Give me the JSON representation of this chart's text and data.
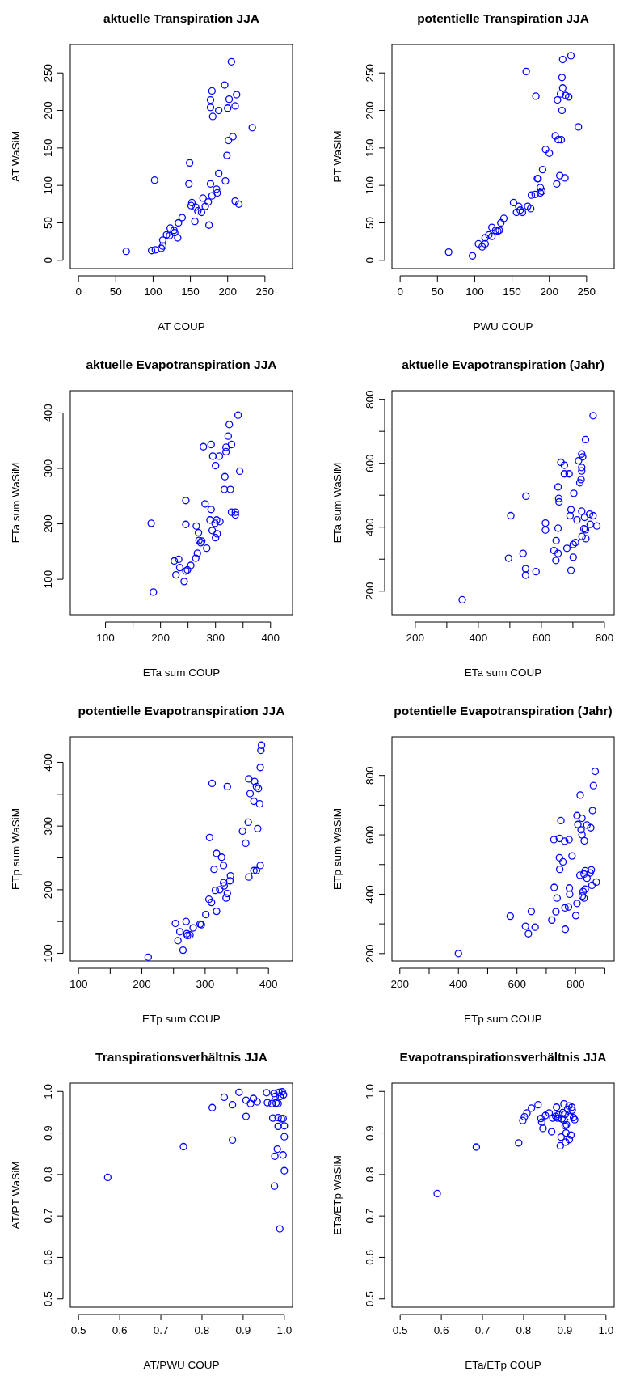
{
  "chart_data": [
    {
      "type": "scatter",
      "title": "aktuelle Transpiration JJA",
      "xlabel": "AT COUP",
      "ylabel": "AT WaSiM",
      "marker": "circle",
      "xlim": [
        -11,
        287
      ],
      "ylim": [
        -11,
        288
      ],
      "xticks": [
        0,
        50,
        100,
        150,
        200,
        250
      ],
      "yticks": [
        0,
        50,
        100,
        150,
        200,
        250
      ],
      "x": [
        64,
        98,
        103,
        111,
        113,
        113,
        118,
        122,
        123,
        128,
        129,
        133,
        134,
        139,
        102,
        149,
        148,
        151,
        152,
        156,
        157,
        160,
        165,
        167,
        170,
        174,
        175,
        179,
        177,
        185,
        186,
        188,
        197,
        199,
        201,
        207,
        210,
        215,
        177,
        177,
        179,
        180,
        188,
        196,
        200,
        202,
        205,
        210,
        212,
        233
      ],
      "series": [
        {
          "color": "#0000ff",
          "values": [
            12,
            13,
            14,
            16,
            19,
            27,
            34,
            33,
            43,
            40,
            37,
            30,
            50,
            57,
            107,
            130,
            102,
            73,
            77,
            52,
            71,
            66,
            64,
            83,
            72,
            78,
            47,
            86,
            102,
            95,
            90,
            116,
            106,
            140,
            160,
            165,
            79,
            75,
            214,
            204,
            226,
            192,
            200,
            234,
            203,
            215,
            265,
            206,
            221,
            177
          ]
        }
      ]
    },
    {
      "type": "scatter",
      "title": "potentielle Transpiration JJA",
      "xlabel": "PWU COUP",
      "ylabel": "PT WaSiM",
      "marker": "circle",
      "xlim": [
        -11,
        287
      ],
      "ylim": [
        -11,
        288
      ],
      "xticks": [
        0,
        50,
        100,
        150,
        200,
        250
      ],
      "yticks": [
        0,
        50,
        100,
        150,
        200,
        250
      ],
      "x": [
        65,
        97,
        105,
        110,
        114,
        114,
        119,
        123,
        123,
        128,
        131,
        133,
        135,
        139,
        152,
        156,
        159,
        161,
        164,
        171,
        175,
        176,
        181,
        184,
        185,
        188,
        188,
        190,
        191,
        195,
        200,
        208,
        212,
        216,
        210,
        214,
        221,
        169,
        182,
        211,
        215,
        218,
        217,
        218,
        217,
        222,
        226,
        229,
        239
      ],
      "series": [
        {
          "color": "#0000ff",
          "values": [
            11,
            6,
            22,
            18,
            22,
            30,
            34,
            44,
            32,
            40,
            39,
            40,
            50,
            56,
            77,
            64,
            72,
            67,
            64,
            72,
            69,
            87,
            88,
            109,
            109,
            97,
            90,
            92,
            121,
            148,
            143,
            166,
            161,
            161,
            102,
            113,
            110,
            252,
            219,
            214,
            222,
            268,
            244,
            230,
            200,
            220,
            218,
            273,
            178
          ]
        }
      ]
    },
    {
      "type": "scatter",
      "title": "aktuelle Evapotranspiration JJA",
      "xlabel": "ETa sum COUP",
      "ylabel": "ETa sum WaSiM",
      "marker": "circle",
      "xlim": [
        36,
        440
      ],
      "ylim": [
        36,
        440
      ],
      "xticks": [
        100,
        {
          "value": 150,
          "label": null
        },
        200,
        {
          "value": 250,
          "label": null
        },
        300,
        {
          "value": 350,
          "label": null
        },
        400
      ],
      "yticks": [
        100,
        200,
        300,
        400
      ],
      "x": [
        183,
        187,
        225,
        233,
        235,
        228,
        243,
        246,
        249,
        255,
        246,
        246,
        264,
        265,
        267,
        269,
        270,
        273,
        275,
        284,
        278,
        281,
        290,
        292,
        292,
        294,
        295,
        300,
        299,
        300,
        302,
        303,
        307,
        308,
        316,
        317,
        319,
        319,
        323,
        325,
        327,
        329,
        329,
        336,
        336,
        341,
        344
      ],
      "series": [
        {
          "color": "#0000ff",
          "values": [
            201,
            77,
            133,
            136,
            121,
            108,
            96,
            115,
            117,
            125,
            242,
            199,
            138,
            196,
            147,
            184,
            170,
            166,
            169,
            156,
            339,
            236,
            207,
            226,
            343,
            188,
            322,
            305,
            201,
            175,
            207,
            182,
            322,
            204,
            262,
            285,
            338,
            330,
            358,
            379,
            262,
            343,
            221,
            221,
            216,
            396,
            295
          ]
        }
      ]
    },
    {
      "type": "scatter",
      "title": "aktuelle Evapotranspiration (Jahr)",
      "xlabel": "ETa sum COUP",
      "ylabel": "ETa sum WaSiM",
      "marker": "circle",
      "xlim": [
        126,
        831
      ],
      "ylim": [
        126,
        827
      ],
      "xticks": [
        200,
        {
          "value": 300,
          "label": null
        },
        400,
        {
          "value": 500,
          "label": null
        },
        600,
        {
          "value": 700,
          "label": null
        },
        800
      ],
      "yticks": [
        200,
        {
          "value": 300,
          "label": null
        },
        400,
        {
          "value": 500,
          "label": null
        },
        600,
        {
          "value": 700,
          "label": null
        },
        800
      ],
      "x": [
        349,
        496,
        503,
        542,
        550,
        550,
        551,
        583,
        613,
        613,
        646,
        647,
        653,
        653,
        653,
        655,
        656,
        662,
        673,
        673,
        640,
        681,
        688,
        694,
        694,
        691,
        703,
        701,
        708,
        701,
        713,
        718,
        722,
        726,
        728,
        731,
        728,
        728,
        728,
        729,
        735,
        740,
        737,
        741,
        740,
        753,
        755,
        764,
        764,
        776
      ],
      "series": [
        {
          "color": "#0000ff",
          "values": [
            173,
            303,
            436,
            318,
            270,
            250,
            497,
            261,
            413,
            391,
            296,
            358,
            397,
            318,
            526,
            490,
            479,
            603,
            594,
            567,
            327,
            334,
            567,
            265,
            455,
            436,
            506,
            346,
            352,
            306,
            423,
            608,
            539,
            549,
            629,
            620,
            587,
            576,
            450,
            371,
            395,
            392,
            431,
            364,
            674,
            441,
            409,
            436,
            749,
            404
          ]
        }
      ]
    },
    {
      "type": "scatter",
      "title": "potentielle Evapotranspiration JJA",
      "xlabel": "ETp sum COUP",
      "ylabel": "ETp sum WaSiM",
      "marker": "circle",
      "xlim": [
        87,
        438
      ],
      "ylim": [
        88,
        440
      ],
      "xticks": [
        100,
        {
          "value": 150,
          "label": null
        },
        200,
        {
          "value": 250,
          "label": null
        },
        300,
        {
          "value": 350,
          "label": null
        },
        400
      ],
      "yticks": [
        100,
        {
          "value": 150,
          "label": null
        },
        200,
        {
          "value": 250,
          "label": null
        },
        300,
        {
          "value": 350,
          "label": null
        },
        400
      ],
      "x": [
        210,
        253,
        257,
        260,
        265,
        270,
        271,
        272,
        276,
        281,
        292,
        294,
        301,
        306,
        310,
        307,
        311,
        314,
        316,
        318,
        318,
        323,
        326,
        329,
        329,
        330,
        333,
        335,
        335,
        339,
        340,
        359,
        364,
        368,
        369,
        369,
        371,
        377,
        377,
        378,
        381,
        383,
        384,
        386,
        387,
        387,
        388,
        389,
        381
      ],
      "series": [
        {
          "color": "#0000ff",
          "values": [
            94,
            147,
            120,
            134,
            105,
            150,
            131,
            128,
            129,
            140,
            146,
            145,
            161,
            185,
            180,
            282,
            367,
            232,
            199,
            166,
            257,
            200,
            251,
            238,
            211,
            206,
            187,
            194,
            362,
            214,
            222,
            292,
            273,
            306,
            220,
            374,
            351,
            339,
            230,
            370,
            362,
            296,
            359,
            335,
            238,
            392,
            419,
            427,
            230
          ]
        }
      ]
    },
    {
      "type": "scatter",
      "title": "potentielle Evapotranspiration (Jahr)",
      "xlabel": "ETp sum COUP",
      "ylabel": "ETp sum WaSiM",
      "marker": "circle",
      "xlim": [
        173,
        932
      ],
      "ylim": [
        175,
        930
      ],
      "xticks": [
        200,
        {
          "value": 300,
          "label": null
        },
        400,
        {
          "value": 500,
          "label": null
        },
        600,
        {
          "value": 700,
          "label": null
        },
        800,
        {
          "value": 900,
          "label": null
        }
      ],
      "yticks": [
        200,
        {
          "value": 300,
          "label": null
        },
        400,
        {
          "value": 500,
          "label": null
        },
        600,
        {
          "value": 700,
          "label": null
        },
        800
      ],
      "x": [
        400,
        577,
        629,
        639,
        649,
        662,
        719,
        727,
        726,
        733,
        737,
        745,
        745,
        746,
        750,
        757,
        763,
        764,
        765,
        776,
        778,
        779,
        780,
        788,
        801,
        805,
        805,
        808,
        816,
        815,
        819,
        822,
        822,
        823,
        826,
        829,
        833,
        830,
        833,
        839,
        839,
        852,
        850,
        854,
        858,
        856,
        861,
        867,
        871,
        829
      ],
      "series": [
        {
          "color": "#0000ff",
          "values": [
            200,
            326,
            292,
            267,
            342,
            289,
            313,
            423,
            584,
            341,
            387,
            588,
            523,
            484,
            648,
            509,
            579,
            354,
            282,
            357,
            584,
            421,
            400,
            529,
            328,
            369,
            665,
            635,
            734,
            464,
            617,
            600,
            656,
            394,
            409,
            387,
            417,
            580,
            479,
            633,
            454,
            624,
            472,
            482,
            682,
            430,
            766,
            814,
            441,
            468
          ]
        }
      ]
    },
    {
      "type": "scatter",
      "title": "Transpirationsverhältnis JJA",
      "xlabel": "AT/PWU COUP",
      "ylabel": "AT/PT WaSiM",
      "marker": "circle",
      "xlim": [
        0.48,
        1.02
      ],
      "ylim": [
        0.48,
        1.02
      ],
      "xticks": [
        0.5,
        0.6,
        0.7,
        0.8,
        0.9,
        {
          "value": 1,
          "label": "1.0"
        }
      ],
      "yticks": [
        0.5,
        0.6,
        0.7,
        0.8,
        0.9,
        {
          "value": 1,
          "label": "1.0"
        }
      ],
      "x": [
        0.571,
        0.755,
        0.825,
        0.854,
        0.874,
        0.874,
        0.89,
        0.907,
        0.907,
        0.918,
        0.925,
        0.934,
        0.957,
        0.959,
        0.97,
        0.972,
        0.975,
        0.978,
        0.98,
        0.976,
        0.977,
        0.983,
        0.985,
        0.985,
        0.985,
        0.987,
        0.989,
        0.99,
        0.993,
        0.995,
        0.997,
        0.997,
        0.998,
        1,
        1,
        1
      ],
      "series": [
        {
          "color": "#0000ff",
          "values": [
            0.793,
            0.867,
            0.961,
            0.986,
            0.968,
            0.883,
            0.998,
            0.979,
            0.94,
            0.971,
            0.983,
            0.975,
            0.997,
            0.973,
            0.971,
            0.936,
            0.995,
            0.988,
            0.972,
            0.772,
            0.844,
            0.861,
            0.916,
            0.937,
            0.971,
            0.998,
            0.669,
            0.988,
            0.934,
            0.999,
            0.847,
            0.935,
            0.992,
            0.891,
            0.917,
            0.809
          ]
        }
      ]
    },
    {
      "type": "scatter",
      "title": "Evapotranspirationsverhältnis JJA",
      "xlabel": "ETa/ETp COUP",
      "ylabel": "ETa/ETp WaSiM",
      "marker": "circle",
      "xlim": [
        0.48,
        1.02
      ],
      "ylim": [
        0.48,
        1.02
      ],
      "xticks": [
        0.5,
        0.6,
        0.7,
        0.8,
        0.9,
        {
          "value": 1,
          "label": "1.0"
        }
      ],
      "yticks": [
        0.5,
        0.6,
        0.7,
        0.8,
        0.9,
        {
          "value": 1,
          "label": "1.0"
        }
      ],
      "x": [
        0.59,
        0.685,
        0.788,
        0.798,
        0.802,
        0.808,
        0.819,
        0.835,
        0.842,
        0.844,
        0.847,
        0.853,
        0.862,
        0.868,
        0.871,
        0.878,
        0.88,
        0.883,
        0.885,
        0.889,
        0.891,
        0.893,
        0.895,
        0.898,
        0.898,
        0.901,
        0.902,
        0.903,
        0.904,
        0.907,
        0.91,
        0.911,
        0.912,
        0.915,
        0.917,
        0.918,
        0.921,
        0.924,
        0.901
      ],
      "series": [
        {
          "color": "#0000ff",
          "values": [
            0.754,
            0.866,
            0.876,
            0.93,
            0.939,
            0.948,
            0.96,
            0.968,
            0.935,
            0.926,
            0.911,
            0.942,
            0.948,
            0.903,
            0.936,
            0.94,
            0.962,
            0.936,
            0.944,
            0.869,
            0.89,
            0.934,
            0.949,
            0.97,
            0.931,
            0.917,
            0.878,
            0.9,
            0.92,
            0.957,
            0.965,
            0.884,
            0.939,
            0.895,
            0.962,
            0.955,
            0.937,
            0.932,
            0.945
          ]
        }
      ]
    }
  ]
}
